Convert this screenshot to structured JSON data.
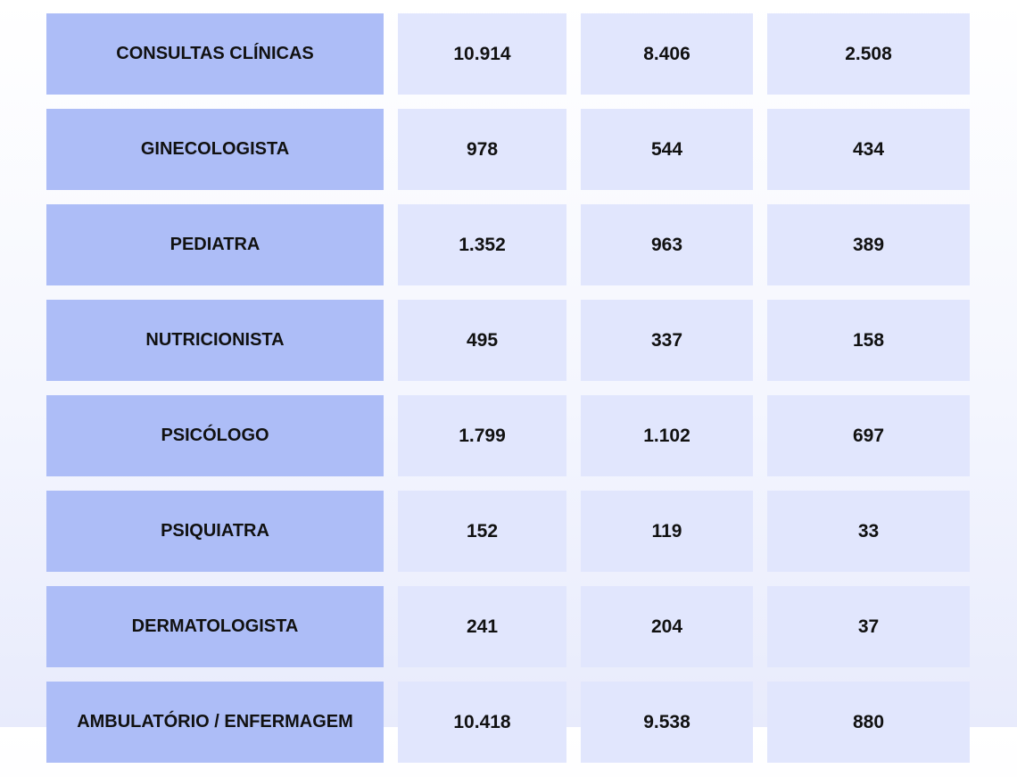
{
  "table": {
    "rows": [
      {
        "label": "CONSULTAS CLÍNICAS",
        "values": [
          "10.914",
          "8.406",
          "2.508"
        ]
      },
      {
        "label": "GINECOLOGISTA",
        "values": [
          "978",
          "544",
          "434"
        ]
      },
      {
        "label": "PEDIATRA",
        "values": [
          "1.352",
          "963",
          "389"
        ]
      },
      {
        "label": "NUTRICIONISTA",
        "values": [
          "495",
          "337",
          "158"
        ]
      },
      {
        "label": "PSICÓLOGO",
        "values": [
          "1.799",
          "1.102",
          "697"
        ]
      },
      {
        "label": "PSIQUIATRA",
        "values": [
          "152",
          "119",
          "33"
        ]
      },
      {
        "label": "DERMATOLOGISTA",
        "values": [
          "241",
          "204",
          "37"
        ]
      },
      {
        "label": "AMBULATÓRIO / ENFERMAGEM",
        "values": [
          "10.418",
          "9.538",
          "880"
        ]
      }
    ]
  }
}
